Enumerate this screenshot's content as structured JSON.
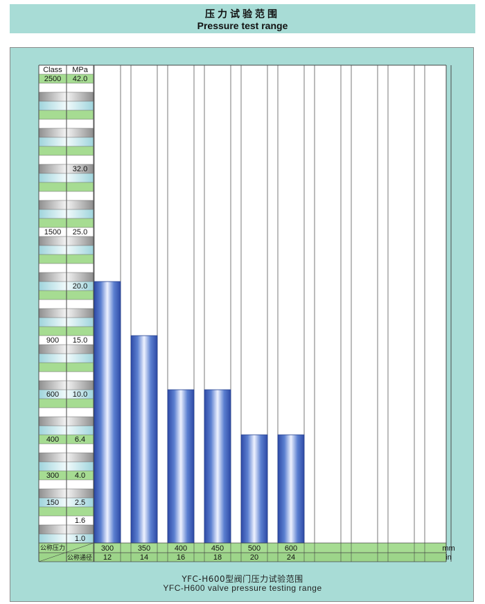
{
  "title": {
    "cn": "压力试验范围",
    "en": "Pressure test range"
  },
  "caption": {
    "cn": "YFC-H600型阀门压力试验范围",
    "en": "YFC-H600 valve pressure testing range"
  },
  "chart_data": {
    "type": "bar",
    "header": {
      "class": "Class",
      "mpa": "MPa"
    },
    "scale_rows": [
      {
        "class": "2500",
        "mpa": "42.0"
      },
      {
        "class": "",
        "mpa": ""
      },
      {
        "class": "",
        "mpa": ""
      },
      {
        "class": "",
        "mpa": ""
      },
      {
        "class": "",
        "mpa": ""
      },
      {
        "class": "",
        "mpa": ""
      },
      {
        "class": "",
        "mpa": ""
      },
      {
        "class": "",
        "mpa": ""
      },
      {
        "class": "",
        "mpa": ""
      },
      {
        "class": "",
        "mpa": ""
      },
      {
        "class": "",
        "mpa": "32.0"
      },
      {
        "class": "",
        "mpa": ""
      },
      {
        "class": "",
        "mpa": ""
      },
      {
        "class": "",
        "mpa": ""
      },
      {
        "class": "",
        "mpa": ""
      },
      {
        "class": "",
        "mpa": ""
      },
      {
        "class": "",
        "mpa": ""
      },
      {
        "class": "1500",
        "mpa": "25.0"
      },
      {
        "class": "",
        "mpa": ""
      },
      {
        "class": "",
        "mpa": ""
      },
      {
        "class": "",
        "mpa": ""
      },
      {
        "class": "",
        "mpa": ""
      },
      {
        "class": "",
        "mpa": ""
      },
      {
        "class": "",
        "mpa": "20.0"
      },
      {
        "class": "",
        "mpa": ""
      },
      {
        "class": "",
        "mpa": ""
      },
      {
        "class": "",
        "mpa": ""
      },
      {
        "class": "",
        "mpa": ""
      },
      {
        "class": "",
        "mpa": ""
      },
      {
        "class": "900",
        "mpa": "15.0"
      },
      {
        "class": "",
        "mpa": ""
      },
      {
        "class": "",
        "mpa": ""
      },
      {
        "class": "",
        "mpa": ""
      },
      {
        "class": "",
        "mpa": ""
      },
      {
        "class": "",
        "mpa": ""
      },
      {
        "class": "600",
        "mpa": "10.0"
      },
      {
        "class": "",
        "mpa": ""
      },
      {
        "class": "",
        "mpa": ""
      },
      {
        "class": "",
        "mpa": ""
      },
      {
        "class": "",
        "mpa": ""
      },
      {
        "class": "400",
        "mpa": "6.4"
      },
      {
        "class": "",
        "mpa": ""
      },
      {
        "class": "",
        "mpa": ""
      },
      {
        "class": "",
        "mpa": ""
      },
      {
        "class": "300",
        "mpa": "4.0"
      },
      {
        "class": "",
        "mpa": ""
      },
      {
        "class": "",
        "mpa": ""
      },
      {
        "class": "150",
        "mpa": "2.5"
      },
      {
        "class": "",
        "mpa": ""
      },
      {
        "class": "",
        "mpa": "1.6"
      },
      {
        "class": "",
        "mpa": ""
      },
      {
        "class": "",
        "mpa": "1.0"
      }
    ],
    "row_label_nominal_pressure": "公称压力",
    "row_label_nominal_diameter": "公称通径",
    "unit_mm": "mm",
    "unit_in": "in",
    "bars": [
      {
        "mm": "300",
        "in": "12",
        "value": "20.0"
      },
      {
        "mm": "350",
        "in": "14",
        "value": "15.0"
      },
      {
        "mm": "400",
        "in": "16",
        "value": "10.0"
      },
      {
        "mm": "450",
        "in": "18",
        "value": "10.0"
      },
      {
        "mm": "500",
        "in": "20",
        "value": "6.4"
      },
      {
        "mm": "600",
        "in": "24",
        "value": "6.4"
      }
    ],
    "empty_columns": 4,
    "bar_color": "#3b5cb8",
    "row_colors": [
      "#9fd98f",
      "#ffffff",
      "#a9a9a9",
      "#b9e3e8"
    ]
  }
}
